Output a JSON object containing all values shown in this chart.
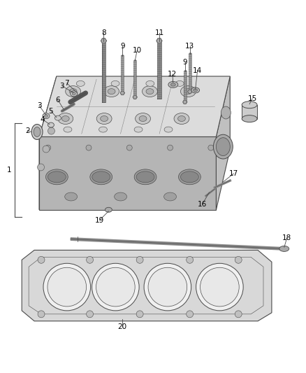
{
  "bg_color": "#ffffff",
  "line_color": "#4a4a4a",
  "label_color": "#000000",
  "fig_width": 4.38,
  "fig_height": 5.33,
  "dpi": 100,
  "head_color_top": "#e0e0e0",
  "head_color_left": "#c8c8c8",
  "head_color_front": "#b8b8b8",
  "gasket_color": "#d5d5d5"
}
